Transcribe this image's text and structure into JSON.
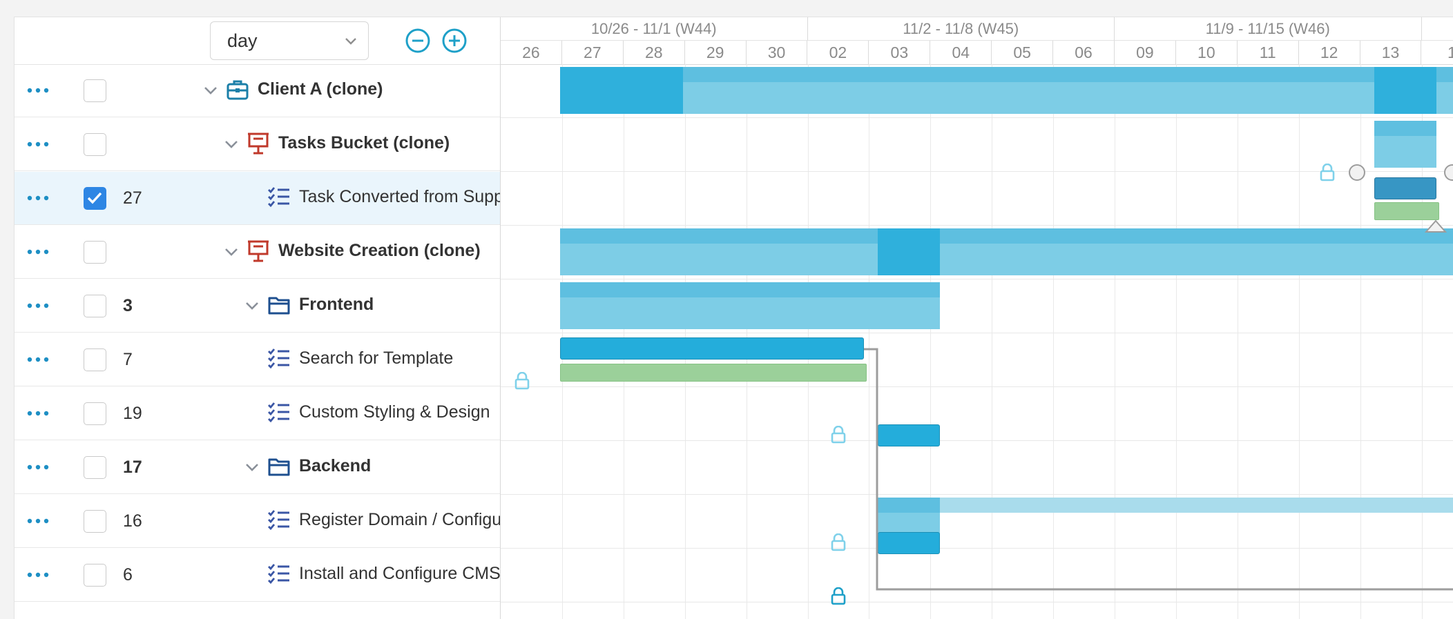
{
  "toolbar": {
    "scale_value": "day"
  },
  "timeline": {
    "weeks": [
      {
        "label": "10/26 - 11/1 (W44)"
      },
      {
        "label": "11/2 - 11/8 (W45)"
      },
      {
        "label": "11/9 - 11/15 (W46)"
      },
      {
        "label": ""
      }
    ],
    "days": [
      "26",
      "27",
      "28",
      "29",
      "30",
      "02",
      "03",
      "04",
      "05",
      "06",
      "09",
      "10",
      "11",
      "12",
      "13",
      "1"
    ]
  },
  "rows": [
    {
      "id": "",
      "name": "Client A (clone)",
      "type": "client",
      "bold": true,
      "collapsible": true,
      "checked": false,
      "selected": false
    },
    {
      "id": "",
      "name": "Tasks Bucket (clone)",
      "type": "project",
      "bold": true,
      "collapsible": true,
      "checked": false,
      "selected": false
    },
    {
      "id": "27",
      "name": "Task Converted from Support",
      "type": "task",
      "bold": false,
      "collapsible": false,
      "checked": true,
      "selected": true
    },
    {
      "id": "",
      "name": "Website Creation (clone)",
      "type": "project",
      "bold": true,
      "collapsible": true,
      "checked": false,
      "selected": false
    },
    {
      "id": "3",
      "name": "Frontend",
      "type": "folder",
      "bold": true,
      "collapsible": true,
      "checked": false,
      "selected": false
    },
    {
      "id": "7",
      "name": "Search for Template",
      "type": "task",
      "bold": false,
      "collapsible": false,
      "checked": false,
      "selected": false
    },
    {
      "id": "19",
      "name": "Custom Styling & Design",
      "type": "task",
      "bold": false,
      "collapsible": false,
      "checked": false,
      "selected": false
    },
    {
      "id": "17",
      "name": "Backend",
      "type": "folder",
      "bold": true,
      "collapsible": true,
      "checked": false,
      "selected": false
    },
    {
      "id": "16",
      "name": "Register Domain / Configure",
      "type": "task",
      "bold": false,
      "collapsible": false,
      "checked": false,
      "selected": false
    },
    {
      "id": "6",
      "name": "Install and Configure CMS",
      "type": "task",
      "bold": false,
      "collapsible": false,
      "checked": false,
      "selected": false
    }
  ],
  "colors": {
    "accent": "#1ea0c8",
    "task_bar": "#24addb",
    "group_bar": "#7dcde6",
    "baseline_bar": "#9bd09a",
    "checkbox_on": "#2e86e4",
    "client_icon": "#1b7fa8",
    "project_icon": "#c0392b",
    "folder_icon": "#1e4f8f",
    "task_icon": "#3a56a5"
  }
}
